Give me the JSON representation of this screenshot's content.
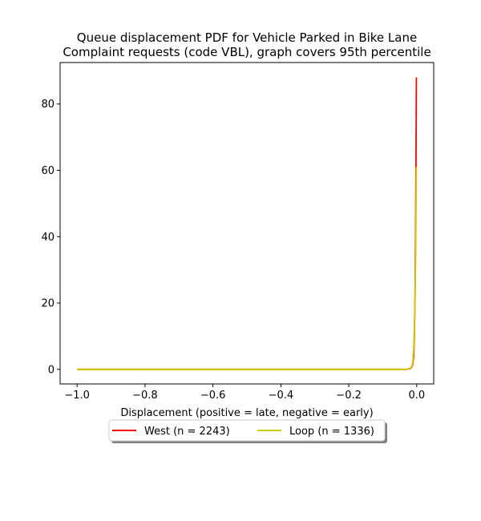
{
  "chart_data": {
    "type": "line",
    "title_line1": "Queue displacement PDF for Vehicle Parked in Bike Lane",
    "title_line2": "Complaint  requests (code VBL), graph covers 95th percentile",
    "xlabel": "Displacement (positive = late, negative = early)",
    "ylabel": "",
    "xlim": [
      -1.05,
      0.05
    ],
    "ylim": [
      -4.4,
      92.5
    ],
    "x_ticks": [
      -1.0,
      -0.8,
      -0.6,
      -0.4,
      -0.2,
      0.0
    ],
    "x_tick_labels": [
      "−1.0",
      "−0.8",
      "−0.6",
      "−0.4",
      "−0.2",
      "0.0"
    ],
    "y_ticks": [
      0,
      20,
      40,
      60,
      80
    ],
    "y_tick_labels": [
      "0",
      "20",
      "40",
      "60",
      "80"
    ],
    "grid": false,
    "legend_position": "below-center",
    "series": [
      {
        "name": "West (n = 2243)",
        "color": "#ff0000",
        "x": [
          -1.0,
          -0.5,
          -0.03,
          -0.02,
          -0.015,
          -0.012,
          -0.009,
          -0.007,
          -0.005,
          -0.003,
          -0.002,
          -0.001
        ],
        "y": [
          0,
          0,
          0,
          0.2,
          0.6,
          1.5,
          4,
          10,
          22,
          45,
          65,
          88
        ]
      },
      {
        "name": "Loop (n = 1336)",
        "color": "#cccc00",
        "x": [
          -1.0,
          -0.5,
          -0.03,
          -0.02,
          -0.015,
          -0.012,
          -0.009,
          -0.007,
          -0.005,
          -0.003,
          -0.002,
          -0.001
        ],
        "y": [
          0,
          0,
          0,
          0.3,
          0.8,
          2,
          6,
          12,
          20,
          35,
          48,
          61
        ]
      }
    ]
  }
}
